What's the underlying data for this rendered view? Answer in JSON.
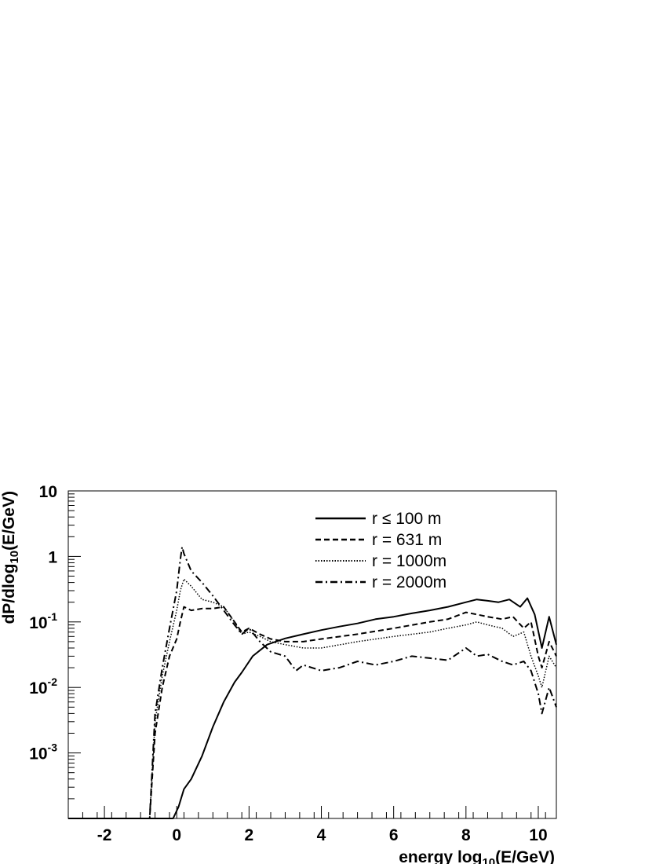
{
  "chart_data": {
    "type": "line",
    "xlabel": "energy log10(E/GeV)",
    "ylabel": "dP/dlog10(E/GeV)",
    "x_scale": "linear",
    "y_scale": "log",
    "xlim": [
      -3,
      10.5
    ],
    "ylim": [
      0.0001,
      10
    ],
    "x_ticks": [
      -2,
      0,
      2,
      4,
      6,
      8,
      10
    ],
    "y_ticks": [
      {
        "value": 10,
        "base": "10",
        "exp": ""
      },
      {
        "value": 1,
        "base": "1",
        "exp": ""
      },
      {
        "value": 0.1,
        "base": "10",
        "exp": "-1"
      },
      {
        "value": 0.01,
        "base": "10",
        "exp": "-2"
      },
      {
        "value": 0.001,
        "base": "10",
        "exp": "-3"
      }
    ],
    "legend_position": "top-right",
    "series": [
      {
        "name": "r ≤ 100 m",
        "style": "solid",
        "x": [
          -3,
          -0.1,
          0.05,
          0.2,
          0.4,
          0.7,
          1.0,
          1.3,
          1.6,
          1.8,
          2.1,
          2.5,
          3.0,
          3.5,
          4.0,
          4.5,
          5.0,
          5.5,
          6.0,
          6.5,
          7.0,
          7.5,
          8.0,
          8.3,
          8.6,
          8.9,
          9.2,
          9.5,
          9.7,
          9.9,
          10.1,
          10.3,
          10.5
        ],
        "y": [
          0.0001,
          0.0001,
          0.00015,
          0.00028,
          0.0004,
          0.0009,
          0.0025,
          0.006,
          0.012,
          0.017,
          0.03,
          0.045,
          0.056,
          0.065,
          0.075,
          0.085,
          0.095,
          0.11,
          0.12,
          0.135,
          0.15,
          0.17,
          0.2,
          0.22,
          0.21,
          0.2,
          0.22,
          0.17,
          0.23,
          0.13,
          0.04,
          0.12,
          0.045
        ]
      },
      {
        "name": "r = 631 m",
        "style": "dashed",
        "x": [
          -3,
          -0.75,
          -0.6,
          -0.4,
          -0.2,
          0.0,
          0.1,
          0.2,
          0.4,
          0.7,
          1.0,
          1.3,
          1.6,
          1.8,
          2.0,
          2.3,
          2.6,
          3.0,
          3.5,
          4.0,
          5.0,
          6.0,
          7.0,
          7.5,
          8.0,
          8.3,
          8.6,
          9.0,
          9.3,
          9.6,
          9.8,
          10.0,
          10.1,
          10.3,
          10.5
        ],
        "y": [
          0.0001,
          0.0001,
          0.002,
          0.01,
          0.03,
          0.055,
          0.1,
          0.17,
          0.15,
          0.16,
          0.16,
          0.17,
          0.1,
          0.07,
          0.08,
          0.065,
          0.055,
          0.05,
          0.05,
          0.055,
          0.065,
          0.08,
          0.1,
          0.11,
          0.14,
          0.13,
          0.12,
          0.11,
          0.12,
          0.08,
          0.1,
          0.03,
          0.02,
          0.05,
          0.03
        ]
      },
      {
        "name": "r = 1000m",
        "style": "dotted",
        "x": [
          -3,
          -0.75,
          -0.6,
          -0.4,
          -0.2,
          0.0,
          0.1,
          0.2,
          0.4,
          0.7,
          1.0,
          1.3,
          1.6,
          1.8,
          2.0,
          2.3,
          2.6,
          3.0,
          3.5,
          4.0,
          5.0,
          6.0,
          7.0,
          7.5,
          8.0,
          8.3,
          8.6,
          9.0,
          9.3,
          9.6,
          9.8,
          10.0,
          10.1,
          10.3,
          10.5
        ],
        "y": [
          0.0001,
          0.0001,
          0.003,
          0.015,
          0.05,
          0.15,
          0.3,
          0.45,
          0.35,
          0.22,
          0.2,
          0.17,
          0.1,
          0.065,
          0.07,
          0.06,
          0.05,
          0.045,
          0.04,
          0.04,
          0.05,
          0.06,
          0.07,
          0.08,
          0.09,
          0.1,
          0.09,
          0.08,
          0.06,
          0.07,
          0.03,
          0.015,
          0.01,
          0.03,
          0.02
        ]
      },
      {
        "name": "r = 2000m",
        "style": "dashdot",
        "x": [
          -3,
          -0.75,
          -0.6,
          -0.4,
          -0.2,
          0.0,
          0.1,
          0.15,
          0.2,
          0.4,
          0.7,
          1.0,
          1.3,
          1.6,
          1.8,
          2.0,
          2.3,
          2.6,
          3.0,
          3.3,
          3.5,
          4.0,
          4.5,
          5.0,
          5.5,
          6.0,
          6.5,
          7.0,
          7.5,
          8.0,
          8.3,
          8.6,
          9.0,
          9.3,
          9.6,
          9.8,
          10.0,
          10.1,
          10.3,
          10.5
        ],
        "y": [
          0.0001,
          0.0001,
          0.004,
          0.02,
          0.08,
          0.3,
          0.9,
          1.4,
          1.1,
          0.6,
          0.4,
          0.25,
          0.15,
          0.09,
          0.065,
          0.08,
          0.05,
          0.035,
          0.03,
          0.018,
          0.022,
          0.018,
          0.02,
          0.025,
          0.022,
          0.025,
          0.03,
          0.028,
          0.026,
          0.04,
          0.03,
          0.032,
          0.025,
          0.022,
          0.025,
          0.018,
          0.008,
          0.004,
          0.01,
          0.005
        ]
      }
    ]
  }
}
